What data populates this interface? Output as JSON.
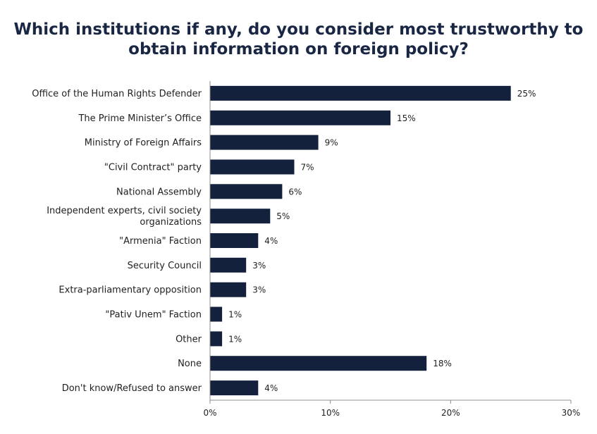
{
  "title_lines": [
    "Which institutions if any, do you consider most trustworthy to",
    "obtain information on foreign policy?"
  ],
  "colors": {
    "bar": "#13213d",
    "axis": "#8c8c8c",
    "text": "#1f1f1f",
    "title": "#1a2744"
  },
  "chart_data": {
    "type": "bar",
    "orientation": "horizontal",
    "title": "Which institutions if any, do you consider most trustworthy to obtain information on foreign policy?",
    "categories": [
      [
        "Office of the Human Rights Defender"
      ],
      [
        "The Prime Minister’s Office"
      ],
      [
        "Ministry of Foreign Affairs"
      ],
      [
        "\"Civil Contract\" party"
      ],
      [
        "National Assembly"
      ],
      [
        "Independent experts, civil society",
        "organizations"
      ],
      [
        "\"Armenia\" Faction"
      ],
      [
        "Security Council"
      ],
      [
        "Extra-parliamentary opposition"
      ],
      [
        "\"Pativ Unem\" Faction"
      ],
      [
        "Other"
      ],
      [
        "None"
      ],
      [
        "Don't know/Refused to answer"
      ]
    ],
    "values": [
      25,
      15,
      9,
      7,
      6,
      5,
      4,
      3,
      3,
      1,
      1,
      18,
      4
    ],
    "value_labels": [
      "25%",
      "15%",
      "9%",
      "7%",
      "6%",
      "5%",
      "4%",
      "3%",
      "3%",
      "1%",
      "1%",
      "18%",
      "4%"
    ],
    "xlim": [
      0,
      30
    ],
    "xticks": [
      0,
      10,
      20,
      30
    ],
    "xtick_labels": [
      "0%",
      "10%",
      "20%",
      "30%"
    ],
    "grid": false,
    "legend": false
  }
}
